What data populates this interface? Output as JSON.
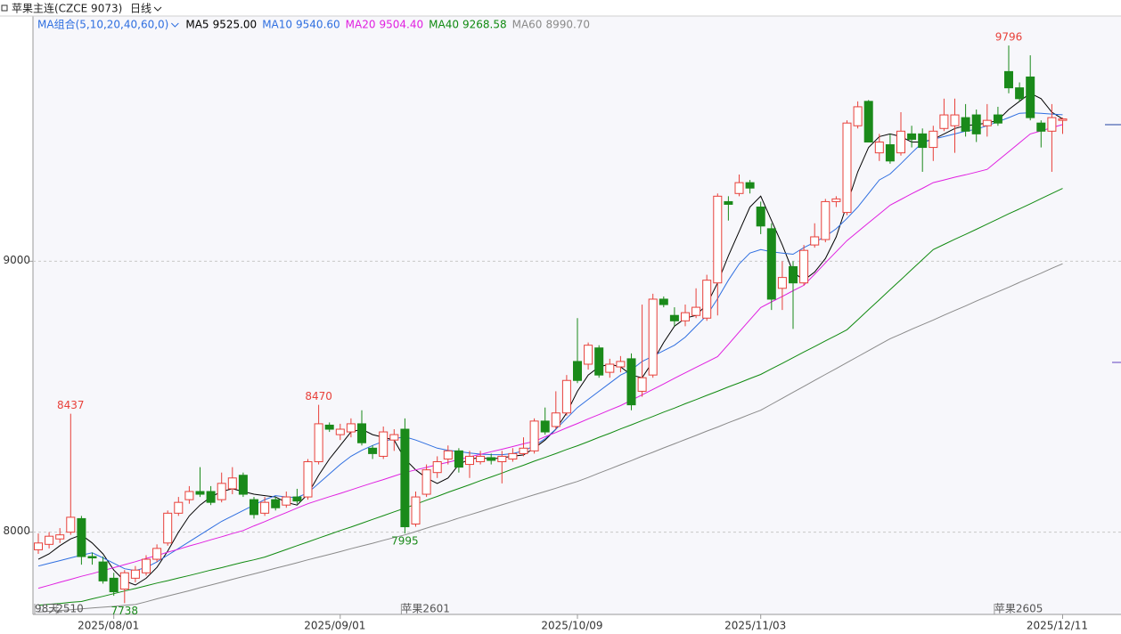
{
  "chart_data": {
    "type": "candlestick",
    "title": "苹果主连(CZCE 9073)",
    "period": "日线",
    "ma_group": "MA组合(5,10,20,40,60,0)",
    "ylim": [
      7703,
      9905
    ],
    "yticks": [
      8000,
      9000
    ],
    "grid": true,
    "up_color": "#e8403a",
    "down_color": "#1a8a1a",
    "categories": [
      null,
      null,
      null,
      null,
      null,
      null,
      null,
      "2025/08/01",
      null,
      null,
      null,
      null,
      null,
      null,
      null,
      null,
      null,
      null,
      null,
      null,
      null,
      null,
      null,
      null,
      null,
      null,
      null,
      null,
      "2025/09/01",
      null,
      null,
      null,
      null,
      null,
      null,
      null,
      null,
      null,
      null,
      null,
      null,
      null,
      null,
      null,
      null,
      null,
      null,
      null,
      null,
      null,
      "2025/10/09",
      null,
      null,
      null,
      null,
      null,
      null,
      null,
      null,
      null,
      null,
      null,
      null,
      null,
      null,
      null,
      null,
      "2025/11/03",
      null,
      null,
      null,
      null,
      null,
      null,
      null,
      null,
      null,
      null,
      null,
      null,
      null,
      null,
      null,
      null,
      null,
      null,
      null,
      null,
      null,
      null,
      null,
      null,
      null,
      null,
      null,
      "2025/12/11"
    ],
    "candles": [
      [
        7935,
        7995,
        7920,
        7960
      ],
      [
        7955,
        8000,
        7940,
        7985
      ],
      [
        7975,
        8015,
        7960,
        7990
      ],
      [
        8000,
        8437,
        7990,
        8055
      ],
      [
        8050,
        8060,
        7880,
        7910
      ],
      [
        7910,
        7925,
        7880,
        7905
      ],
      [
        7890,
        7910,
        7810,
        7820
      ],
      [
        7830,
        7850,
        7765,
        7780
      ],
      [
        7790,
        7860,
        7738,
        7850
      ],
      [
        7830,
        7875,
        7815,
        7860
      ],
      [
        7850,
        7915,
        7840,
        7900
      ],
      [
        7900,
        7955,
        7890,
        7940
      ],
      [
        7960,
        8080,
        7950,
        8070
      ],
      [
        8070,
        8130,
        8060,
        8110
      ],
      [
        8120,
        8170,
        8105,
        8150
      ],
      [
        8150,
        8240,
        8130,
        8140
      ],
      [
        8150,
        8170,
        8100,
        8110
      ],
      [
        8120,
        8220,
        8110,
        8180
      ],
      [
        8160,
        8240,
        8140,
        8200
      ],
      [
        8210,
        8220,
        8130,
        8140
      ],
      [
        8120,
        8130,
        8050,
        8065
      ],
      [
        8070,
        8130,
        8060,
        8110
      ],
      [
        8120,
        8130,
        8080,
        8090
      ],
      [
        8100,
        8150,
        8090,
        8130
      ],
      [
        8130,
        8160,
        8105,
        8115
      ],
      [
        8130,
        8270,
        8120,
        8260
      ],
      [
        8260,
        8470,
        8250,
        8400
      ],
      [
        8395,
        8405,
        8370,
        8380
      ],
      [
        8360,
        8400,
        8340,
        8380
      ],
      [
        8370,
        8420,
        8350,
        8400
      ],
      [
        8400,
        8450,
        8320,
        8330
      ],
      [
        8310,
        8320,
        8270,
        8290
      ],
      [
        8280,
        8390,
        8270,
        8370
      ],
      [
        8340,
        8380,
        8300,
        8360
      ],
      [
        8380,
        8420,
        7995,
        8020
      ],
      [
        8030,
        8150,
        8020,
        8130
      ],
      [
        8140,
        8250,
        8130,
        8230
      ],
      [
        8220,
        8280,
        8200,
        8260
      ],
      [
        8270,
        8320,
        8250,
        8300
      ],
      [
        8300,
        8310,
        8220,
        8240
      ],
      [
        8250,
        8300,
        8200,
        8280
      ],
      [
        8260,
        8300,
        8250,
        8280
      ],
      [
        8275,
        8290,
        8250,
        8265
      ],
      [
        8260,
        8300,
        8180,
        8280
      ],
      [
        8270,
        8310,
        8260,
        8290
      ],
      [
        8290,
        8350,
        8280,
        8310
      ],
      [
        8300,
        8420,
        8290,
        8410
      ],
      [
        8410,
        8460,
        8360,
        8370
      ],
      [
        8390,
        8520,
        8380,
        8440
      ],
      [
        8440,
        8580,
        8430,
        8560
      ],
      [
        8630,
        8790,
        8550,
        8560
      ],
      [
        8620,
        8700,
        8600,
        8690
      ],
      [
        8680,
        8690,
        8570,
        8580
      ],
      [
        8590,
        8640,
        8570,
        8620
      ],
      [
        8610,
        8650,
        8590,
        8630
      ],
      [
        8640,
        8660,
        8450,
        8470
      ],
      [
        8520,
        8840,
        8500,
        8570
      ],
      [
        8580,
        8880,
        8570,
        8860
      ],
      [
        8860,
        8870,
        8830,
        8840
      ],
      [
        8800,
        8830,
        8760,
        8780
      ],
      [
        8780,
        8840,
        8760,
        8810
      ],
      [
        8800,
        8900,
        8790,
        8830
      ],
      [
        8790,
        8950,
        8780,
        8930
      ],
      [
        8920,
        9250,
        8800,
        9240
      ],
      [
        9220,
        9240,
        9150,
        9210
      ],
      [
        9250,
        9320,
        9240,
        9290
      ],
      [
        9290,
        9300,
        9250,
        9270
      ],
      [
        9200,
        9220,
        9100,
        9130
      ],
      [
        9120,
        9140,
        8820,
        8860
      ],
      [
        8900,
        9000,
        8820,
        8940
      ],
      [
        8980,
        9000,
        8750,
        8920
      ],
      [
        8920,
        9060,
        8910,
        9040
      ],
      [
        9060,
        9140,
        9050,
        9090
      ],
      [
        9080,
        9230,
        9070,
        9220
      ],
      [
        9220,
        9240,
        9200,
        9230
      ],
      [
        9180,
        9520,
        9170,
        9510
      ],
      [
        9500,
        9590,
        9490,
        9570
      ],
      [
        9590,
        9595,
        9440,
        9440
      ],
      [
        9400,
        9470,
        9370,
        9440
      ],
      [
        9430,
        9470,
        9360,
        9370
      ],
      [
        9400,
        9550,
        9390,
        9480
      ],
      [
        9470,
        9500,
        9420,
        9450
      ],
      [
        9470,
        9490,
        9330,
        9420
      ],
      [
        9420,
        9500,
        9370,
        9480
      ],
      [
        9490,
        9600,
        9480,
        9540
      ],
      [
        9500,
        9600,
        9400,
        9540
      ],
      [
        9530,
        9580,
        9460,
        9480
      ],
      [
        9540,
        9560,
        9440,
        9470
      ],
      [
        9500,
        9580,
        9460,
        9520
      ],
      [
        9540,
        9570,
        9500,
        9510
      ],
      [
        9700,
        9796,
        9620,
        9640
      ],
      [
        9640,
        9660,
        9590,
        9600
      ],
      [
        9680,
        9760,
        9520,
        9530
      ],
      [
        9510,
        9520,
        9420,
        9480
      ],
      [
        9480,
        9580,
        9330,
        9530
      ],
      [
        9520,
        9530,
        9470,
        9525
      ]
    ],
    "series": [
      {
        "name": "MA5",
        "label": "9525.00",
        "color": "#000000",
        "values": [
          7900,
          7920,
          7950,
          7975,
          7990,
          7960,
          7920,
          7860,
          7820,
          7805,
          7830,
          7870,
          7930,
          8000,
          8060,
          8100,
          8130,
          8150,
          8160,
          8150,
          8140,
          8135,
          8130,
          8110,
          8100,
          8140,
          8210,
          8270,
          8320,
          8370,
          8380,
          8360,
          8350,
          8340,
          8270,
          8230,
          8200,
          8180,
          8200,
          8250,
          8270,
          8275,
          8270,
          8275,
          8280,
          8285,
          8310,
          8340,
          8380,
          8440,
          8520,
          8580,
          8610,
          8620,
          8610,
          8580,
          8570,
          8630,
          8700,
          8760,
          8790,
          8800,
          8840,
          8920,
          9020,
          9110,
          9200,
          9240,
          9150,
          9060,
          8960,
          8930,
          8960,
          9010,
          9090,
          9210,
          9330,
          9420,
          9460,
          9470,
          9460,
          9440,
          9440,
          9450,
          9470,
          9490,
          9500,
          9505,
          9510,
          9520,
          9560,
          9590,
          9620,
          9600,
          9550,
          9525
        ]
      },
      {
        "name": "MA10",
        "label": "9540.60",
        "color": "#2f6fe0",
        "values": [
          7875,
          7885,
          7895,
          7905,
          7915,
          7924,
          7905,
          7885,
          7865,
          7858,
          7870,
          7890,
          7915,
          7940,
          7965,
          7990,
          8015,
          8040,
          8060,
          8080,
          8100,
          8120,
          8135,
          8130,
          8128,
          8145,
          8180,
          8215,
          8250,
          8280,
          8302,
          8320,
          8335,
          8345,
          8352,
          8340,
          8325,
          8310,
          8302,
          8298,
          8292,
          8288,
          8286,
          8286,
          8290,
          8300,
          8319,
          8345,
          8380,
          8420,
          8460,
          8490,
          8520,
          8550,
          8580,
          8599,
          8630,
          8650,
          8670,
          8690,
          8720,
          8760,
          8800,
          8862,
          8930,
          8990,
          9030,
          9043,
          9035,
          9030,
          9026,
          9050,
          9070,
          9092,
          9120,
          9158,
          9200,
          9250,
          9300,
          9322,
          9360,
          9400,
          9438,
          9450,
          9460,
          9470,
          9480,
          9487,
          9500,
          9515,
          9530,
          9546,
          9548,
          9546,
          9543,
          9540.6
        ]
      },
      {
        "name": "MA20",
        "label": "9504.40",
        "color": "#e020e0",
        "values": [
          7793,
          7804,
          7815,
          7826,
          7837,
          7847,
          7858,
          7869,
          7880,
          7891,
          7903,
          7914,
          7926,
          7937,
          7949,
          7960,
          7972,
          7983,
          7995,
          8006,
          8023,
          8039,
          8056,
          8072,
          8089,
          8105,
          8118,
          8131,
          8143,
          8156,
          8169,
          8182,
          8194,
          8207,
          8220,
          8230,
          8239,
          8249,
          8258,
          8268,
          8278,
          8287,
          8297,
          8306,
          8316,
          8326,
          8335,
          8352,
          8368,
          8385,
          8401,
          8418,
          8434,
          8451,
          8467,
          8487,
          8507,
          8527,
          8547,
          8568,
          8588,
          8608,
          8628,
          8648,
          8693,
          8739,
          8784,
          8829,
          8850,
          8870,
          8891,
          8911,
          8952,
          8994,
          9035,
          9076,
          9109,
          9142,
          9174,
          9207,
          9228,
          9249,
          9269,
          9290,
          9300,
          9310,
          9319,
          9329,
          9339,
          9372,
          9404,
          9437,
          9470,
          9481,
          9493,
          9504.4
        ]
      },
      {
        "name": "MA40",
        "label": "9268.58",
        "color": "#108a10",
        "values": [
          7730,
          7734,
          7737,
          7741,
          7744,
          7754,
          7763,
          7773,
          7783,
          7792,
          7802,
          7812,
          7821,
          7831,
          7840,
          7850,
          7860,
          7869,
          7879,
          7889,
          7898,
          7908,
          7922,
          7936,
          7950,
          7964,
          7978,
          7992,
          8006,
          8019,
          8033,
          8047,
          8061,
          8075,
          8089,
          8103,
          8118,
          8132,
          8147,
          8161,
          8175,
          8190,
          8204,
          8218,
          8233,
          8247,
          8262,
          8276,
          8290,
          8305,
          8319,
          8334,
          8350,
          8365,
          8381,
          8396,
          8412,
          8427,
          8443,
          8458,
          8474,
          8489,
          8505,
          8520,
          8536,
          8551,
          8567,
          8582,
          8603,
          8623,
          8644,
          8665,
          8685,
          8706,
          8726,
          8747,
          8784,
          8821,
          8858,
          8895,
          8932,
          8969,
          9006,
          9043,
          9062,
          9081,
          9099,
          9118,
          9137,
          9156,
          9175,
          9193,
          9212,
          9231,
          9250,
          9268.58
        ]
      },
      {
        "name": "MA60",
        "label": "8990.70",
        "color": "#8a8a8a",
        "values": [
          7705,
          7708,
          7711,
          7714,
          7717,
          7720,
          7723,
          7726,
          7730,
          7733,
          7743,
          7754,
          7764,
          7774,
          7784,
          7795,
          7805,
          7815,
          7826,
          7836,
          7846,
          7856,
          7867,
          7877,
          7887,
          7898,
          7908,
          7918,
          7928,
          7939,
          7949,
          7959,
          7970,
          7980,
          7990,
          8002,
          8015,
          8027,
          8039,
          8052,
          8064,
          8076,
          8089,
          8101,
          8113,
          8126,
          8138,
          8150,
          8162,
          8175,
          8187,
          8202,
          8218,
          8233,
          8249,
          8264,
          8280,
          8295,
          8311,
          8326,
          8342,
          8357,
          8373,
          8388,
          8404,
          8419,
          8435,
          8450,
          8472,
          8494,
          8516,
          8538,
          8560,
          8582,
          8604,
          8626,
          8648,
          8670,
          8692,
          8714,
          8731,
          8749,
          8766,
          8783,
          8801,
          8818,
          8835,
          8853,
          8870,
          8887,
          8904,
          8922,
          8939,
          8956,
          8974,
          8990.7
        ]
      }
    ],
    "annotations": [
      {
        "text": "8437",
        "x": 3,
        "y": 8437,
        "color": "#e8403a",
        "side": "high"
      },
      {
        "text": "8470",
        "x": 26,
        "y": 8470,
        "color": "#e8403a",
        "side": "high"
      },
      {
        "text": "9796",
        "x": 90,
        "y": 9796,
        "color": "#e8403a",
        "side": "high"
      },
      {
        "text": "7738",
        "x": 8,
        "y": 7738,
        "color": "#1a8a1a",
        "side": "low"
      },
      {
        "text": "7995",
        "x": 34,
        "y": 7995,
        "color": "#1a8a1a",
        "side": "low"
      }
    ],
    "contract_marks": [
      {
        "label": "98天",
        "x": 0
      },
      {
        "label": "2510",
        "x": 2
      },
      {
        "label": "苹果2601",
        "x": 34
      },
      {
        "label": "苹果2605",
        "x": 89
      }
    ]
  }
}
